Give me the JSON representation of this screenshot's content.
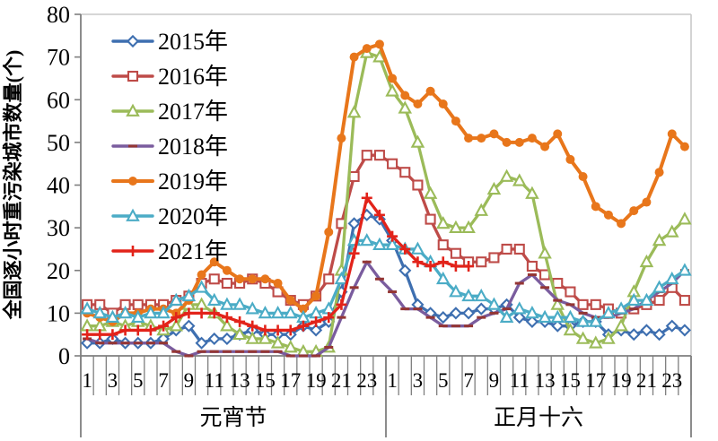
{
  "chart_data": {
    "type": "line",
    "title": "",
    "ylabel": "全国逐小时重污染城市数量(个)",
    "ylim": [
      0,
      80
    ],
    "ytick_step": 10,
    "grid": false,
    "legend_position": "top-left",
    "hours_per_day": 24,
    "x_tick_labels": [
      "1",
      "3",
      "5",
      "7",
      "9",
      "11",
      "13",
      "15",
      "17",
      "19",
      "21",
      "23"
    ],
    "days": [
      {
        "label": "元宵节"
      },
      {
        "label": "正月十六"
      }
    ],
    "series": [
      {
        "name": "2015年",
        "color": "#3E6FB0",
        "marker": "diamond",
        "values": [
          3,
          3,
          4,
          3,
          3,
          3,
          4,
          6,
          7,
          3,
          4,
          4,
          5,
          6,
          5,
          5,
          5,
          7,
          6,
          8,
          15,
          31,
          33,
          32,
          27,
          20,
          12,
          10,
          9,
          10,
          10,
          11,
          11,
          12,
          9,
          8,
          8,
          7,
          7,
          8,
          8,
          5,
          6,
          5,
          6,
          5,
          7,
          6
        ]
      },
      {
        "name": "2016年",
        "color": "#BE4B48",
        "marker": "square",
        "values": [
          12,
          12,
          10,
          12,
          12,
          12,
          12,
          13,
          14,
          17,
          18,
          17,
          17,
          18,
          17,
          15,
          13,
          12,
          14,
          18,
          31,
          42,
          47,
          47,
          45,
          43,
          40,
          32,
          26,
          24,
          22,
          22,
          23,
          25,
          25,
          21,
          19,
          17,
          15,
          12,
          12,
          11,
          10,
          11,
          12,
          13,
          16,
          13
        ]
      },
      {
        "name": "2017年",
        "color": "#9BBB59",
        "marker": "triangle",
        "values": [
          7,
          7,
          8,
          7,
          8,
          7,
          6,
          7,
          12,
          12,
          10,
          7,
          5,
          4,
          4,
          3,
          2,
          1,
          1,
          2,
          20,
          57,
          71,
          70,
          62,
          58,
          50,
          38,
          31,
          30,
          30,
          34,
          39,
          42,
          41,
          38,
          24,
          12,
          6,
          4,
          3,
          4,
          7,
          15,
          22,
          27,
          29,
          32
        ]
      },
      {
        "name": "2018年",
        "color": "#7A5C9E",
        "marker": "dash",
        "marker_color": "#943634",
        "values": [
          4,
          3,
          3,
          3,
          3,
          3,
          3,
          1,
          0,
          1,
          1,
          1,
          1,
          1,
          1,
          1,
          0,
          0,
          0,
          2,
          9,
          16,
          22,
          18,
          15,
          11,
          11,
          9,
          7,
          7,
          7,
          9,
          10,
          11,
          17,
          19,
          16,
          13,
          12,
          10,
          9,
          9,
          10,
          11,
          13,
          15,
          17,
          20
        ]
      },
      {
        "name": "2019年",
        "color": "#E8761B",
        "marker": "circle",
        "values": [
          10,
          9,
          8,
          10,
          10,
          11,
          11,
          10,
          13,
          19,
          22,
          20,
          18,
          18,
          18,
          17,
          13,
          11,
          14,
          29,
          51,
          70,
          72,
          73,
          65,
          61,
          59,
          62,
          59,
          55,
          51,
          51,
          52,
          50,
          50,
          51,
          49,
          52,
          46,
          42,
          35,
          33,
          31,
          34,
          36,
          43,
          52,
          49
        ]
      },
      {
        "name": "2020年",
        "color": "#4BACC6",
        "marker": "triangle",
        "values": [
          11,
          10,
          9,
          10,
          9,
          10,
          10,
          13,
          14,
          16,
          13,
          12,
          12,
          11,
          10,
          10,
          10,
          9,
          10,
          11,
          18,
          27,
          27,
          26,
          26,
          25,
          25,
          22,
          18,
          15,
          14,
          14,
          12,
          9,
          11,
          10,
          9,
          9,
          9,
          8,
          8,
          10,
          11,
          13,
          13,
          16,
          18,
          20
        ]
      },
      {
        "name": "2021年",
        "color": "#E2231A",
        "marker": "plus",
        "values": [
          5,
          5,
          5,
          6,
          6,
          6,
          7,
          9,
          10,
          10,
          10,
          9,
          8,
          7,
          6,
          6,
          6,
          7,
          8,
          9,
          12,
          24,
          37,
          33,
          28,
          25,
          22,
          21,
          22,
          21,
          21
        ]
      }
    ]
  }
}
